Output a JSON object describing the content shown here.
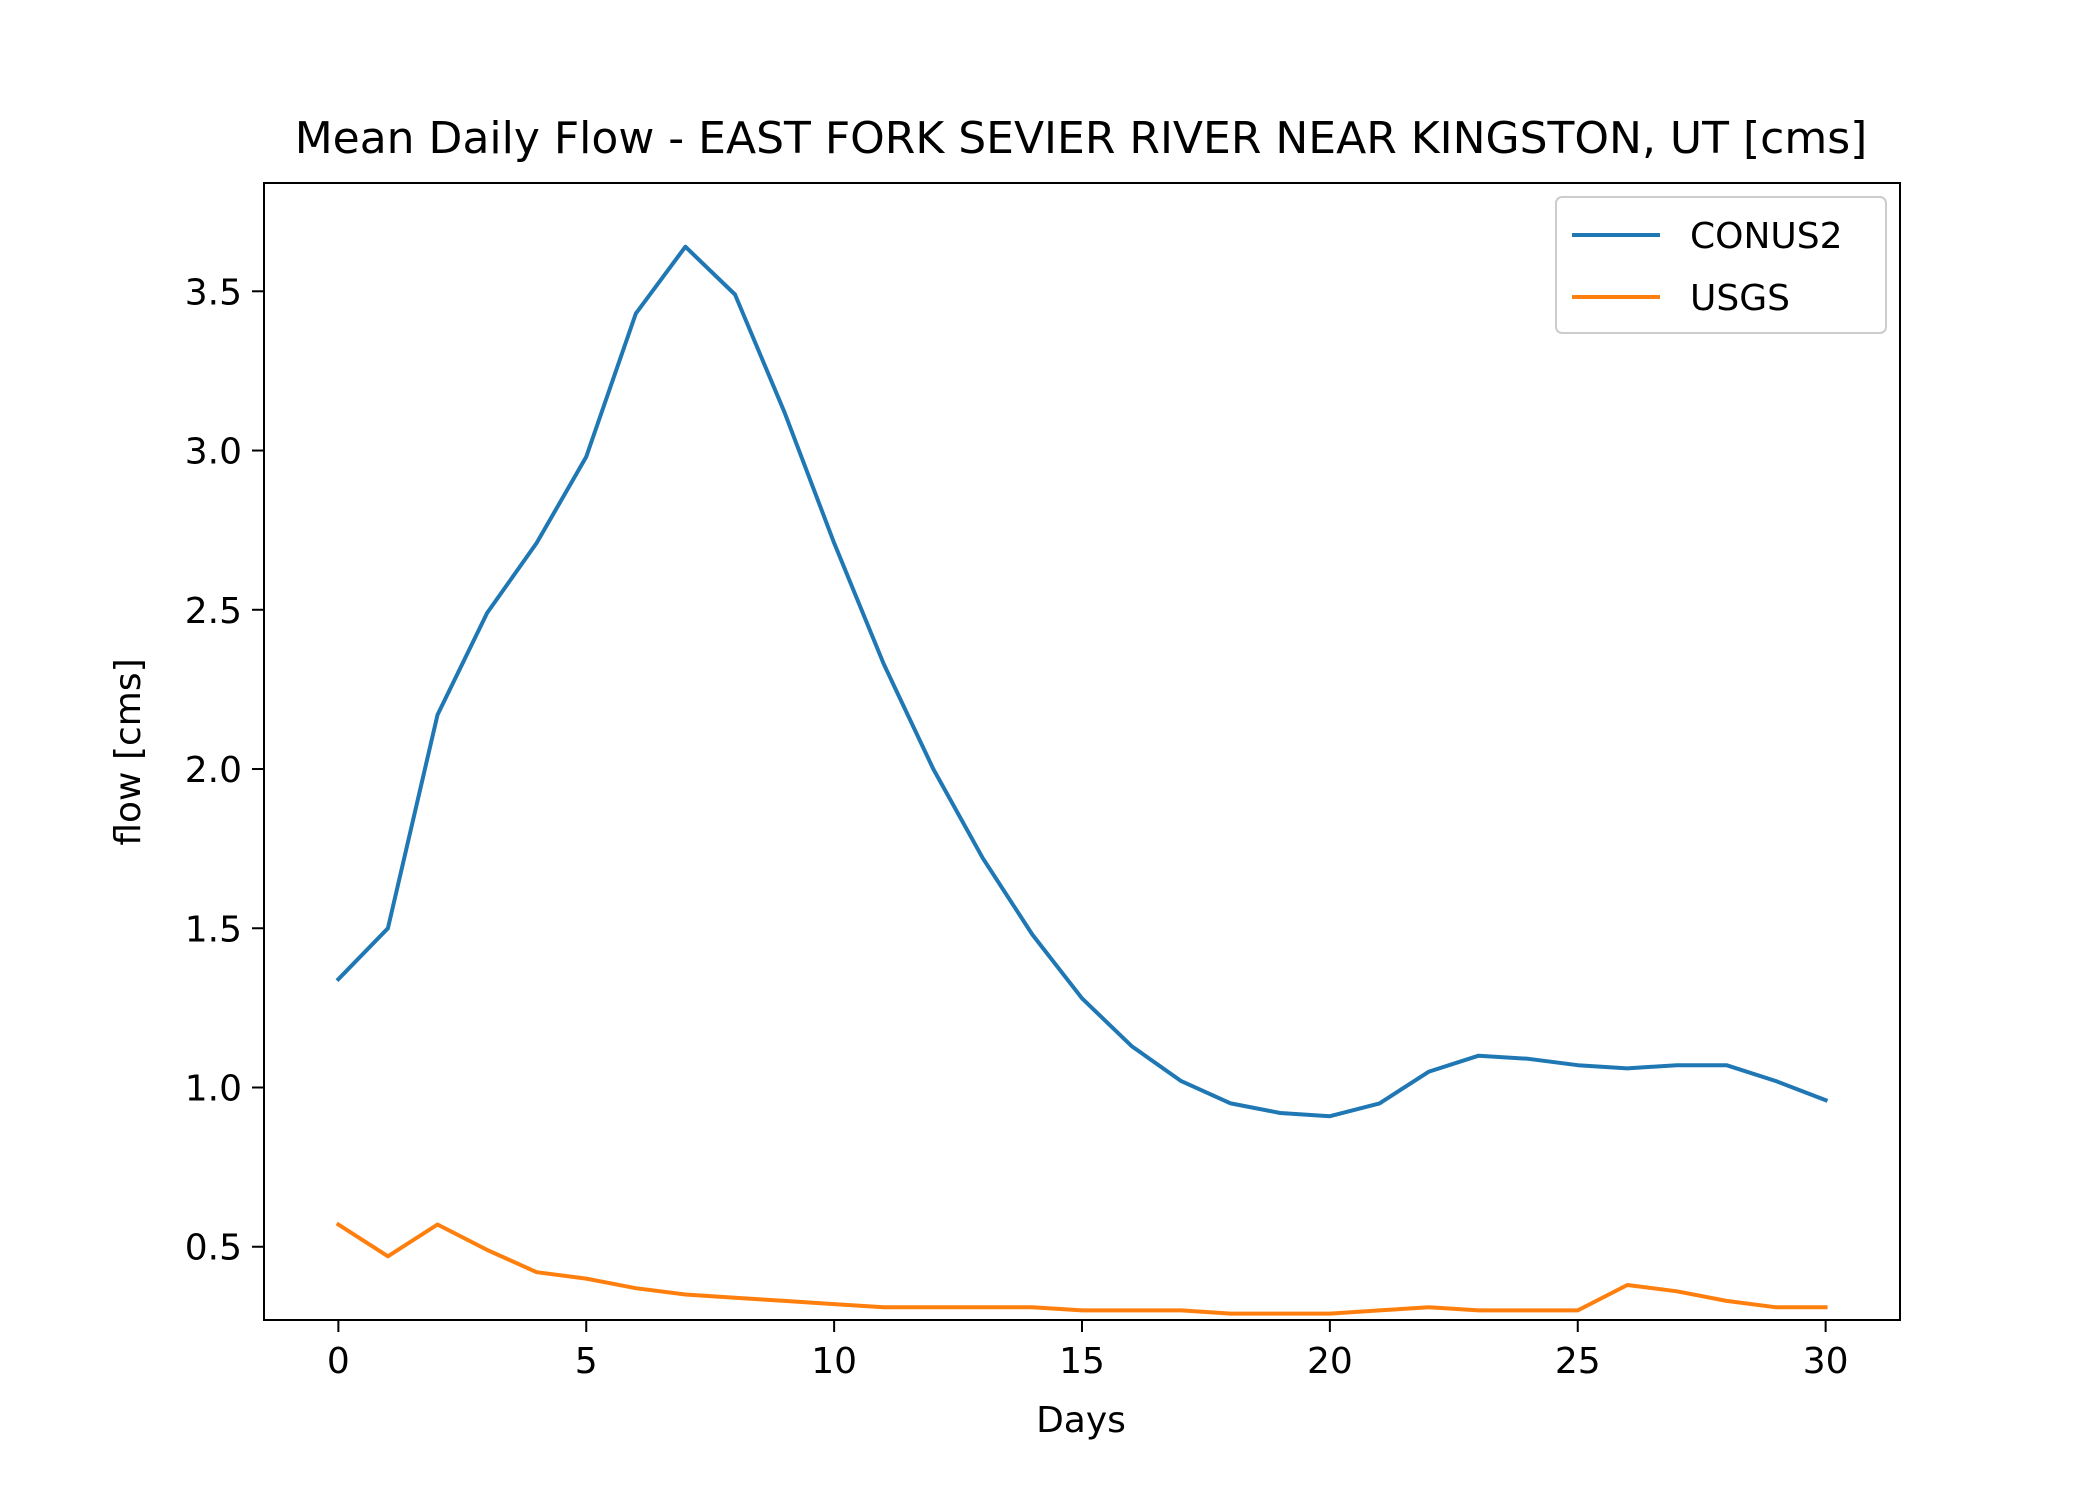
{
  "chart_data": {
    "type": "line",
    "title": "Mean Daily Flow - EAST FORK SEVIER RIVER NEAR KINGSTON, UT [cms]",
    "xlabel": "Days",
    "ylabel": "flow [cms]",
    "xlim": [
      -1.5,
      31.5
    ],
    "ylim": [
      0.27,
      3.84
    ],
    "xticks": [
      0,
      5,
      10,
      15,
      20,
      25,
      30
    ],
    "xtick_labels": [
      "0",
      "5",
      "10",
      "15",
      "20",
      "25",
      "30"
    ],
    "yticks": [
      0.5,
      1.0,
      1.5,
      2.0,
      2.5,
      3.0,
      3.5
    ],
    "ytick_labels": [
      "0.5",
      "1.0",
      "1.5",
      "2.0",
      "2.5",
      "3.0",
      "3.5"
    ],
    "grid": false,
    "legend_position": "top-right",
    "x": [
      0,
      1,
      2,
      3,
      4,
      5,
      6,
      7,
      8,
      9,
      10,
      11,
      12,
      13,
      14,
      15,
      16,
      17,
      18,
      19,
      20,
      21,
      22,
      23,
      24,
      25,
      26,
      27,
      28,
      29,
      30
    ],
    "series": [
      {
        "name": "CONUS2",
        "color": "#1f77b4",
        "values": [
          1.34,
          1.5,
          2.17,
          2.49,
          2.71,
          2.98,
          3.43,
          3.64,
          3.49,
          3.12,
          2.71,
          2.33,
          2.0,
          1.72,
          1.48,
          1.28,
          1.13,
          1.02,
          0.95,
          0.92,
          0.91,
          0.95,
          1.05,
          1.1,
          1.09,
          1.07,
          1.06,
          1.07,
          1.07,
          1.02,
          0.96
        ]
      },
      {
        "name": "USGS",
        "color": "#ff7f0e",
        "values": [
          0.57,
          0.47,
          0.57,
          0.49,
          0.42,
          0.4,
          0.37,
          0.35,
          0.34,
          0.33,
          0.32,
          0.31,
          0.31,
          0.31,
          0.31,
          0.3,
          0.3,
          0.3,
          0.29,
          0.29,
          0.29,
          0.3,
          0.31,
          0.3,
          0.3,
          0.3,
          0.38,
          0.36,
          0.33,
          0.31,
          0.31
        ]
      }
    ]
  }
}
